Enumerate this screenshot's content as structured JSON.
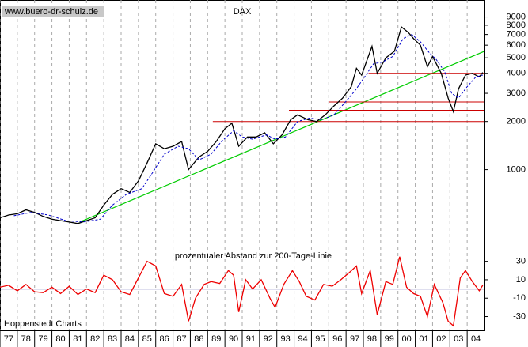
{
  "chart_data": [
    {
      "type": "line",
      "title": "DAX",
      "source": "www.buero-dr-schulz.de",
      "log_scale": true,
      "grid": true,
      "xlim": [
        1977,
        2005
      ],
      "ylim": [
        330,
        11500
      ],
      "yticks": [
        1000,
        2000,
        3000,
        4000,
        5000,
        6000,
        7000,
        8000,
        9000
      ],
      "series": [
        {
          "name": "DAX",
          "color": "#000000",
          "x": [
            1977.0,
            1977.5,
            1978.0,
            1978.5,
            1979.0,
            1979.5,
            1980.0,
            1980.5,
            1981.0,
            1981.5,
            1982.0,
            1982.5,
            1983.0,
            1983.5,
            1984.0,
            1984.5,
            1985.0,
            1985.5,
            1986.0,
            1986.5,
            1987.0,
            1987.5,
            1987.9,
            1988.5,
            1989.0,
            1989.5,
            1990.0,
            1990.4,
            1990.8,
            1991.3,
            1991.8,
            1992.3,
            1992.8,
            1993.3,
            1993.8,
            1994.2,
            1994.8,
            1995.3,
            1995.8,
            1996.3,
            1996.8,
            1997.3,
            1997.6,
            1997.9,
            1998.5,
            1998.8,
            1999.3,
            1999.8,
            2000.2,
            2000.6,
            2000.9,
            2001.3,
            2001.7,
            2002.0,
            2002.5,
            2002.9,
            2003.2,
            2003.5,
            2003.9,
            2004.3,
            2004.7,
            2004.9
          ],
          "values": [
            500,
            520,
            530,
            560,
            540,
            510,
            490,
            480,
            470,
            460,
            480,
            500,
            600,
            700,
            760,
            720,
            850,
            1100,
            1450,
            1350,
            1400,
            1500,
            1000,
            1200,
            1300,
            1500,
            1800,
            1950,
            1400,
            1600,
            1600,
            1700,
            1450,
            1650,
            2050,
            2200,
            2050,
            2000,
            2200,
            2500,
            2800,
            3300,
            4300,
            3900,
            5900,
            4000,
            5000,
            5500,
            7800,
            7200,
            6600,
            6000,
            4400,
            5100,
            4000,
            2800,
            2300,
            3200,
            3900,
            4000,
            3800,
            4050
          ]
        },
        {
          "name": "200-Tage-Linie",
          "color": "#0000cc",
          "dashed": true,
          "x": [
            1977.8,
            1978.8,
            1979.8,
            1980.8,
            1981.8,
            1982.8,
            1983.5,
            1984.3,
            1985.2,
            1985.8,
            1986.5,
            1987.3,
            1987.9,
            1988.5,
            1989.2,
            1989.8,
            1990.5,
            1991.0,
            1991.6,
            1992.4,
            1992.9,
            1993.5,
            1994.2,
            1994.9,
            1995.6,
            1996.3,
            1996.9,
            1997.5,
            1998.0,
            1998.6,
            1999.1,
            1999.7,
            2000.3,
            2000.8,
            2001.3,
            2001.8,
            2002.2,
            2002.7,
            2003.1,
            2003.5,
            2004.0,
            2004.5,
            2004.9
          ],
          "values": [
            515,
            540,
            520,
            480,
            470,
            490,
            600,
            700,
            760,
            950,
            1250,
            1400,
            1350,
            1150,
            1250,
            1500,
            1750,
            1600,
            1550,
            1650,
            1550,
            1600,
            2000,
            2100,
            2050,
            2200,
            2600,
            3100,
            3700,
            4600,
            4700,
            5100,
            6600,
            7000,
            6300,
            5400,
            4900,
            4100,
            3000,
            2800,
            3300,
            3800,
            3900
          ]
        }
      ],
      "trendline": {
        "color": "#00cc00",
        "x": [
          1981.6,
          2005
        ],
        "values": [
          470,
          5500
        ]
      },
      "levels": {
        "color": "#cc0000",
        "from": [
          1998.3,
          1996.0,
          1993.7,
          1989.3
        ],
        "values": [
          4000,
          2650,
          2350,
          2000
        ]
      }
    },
    {
      "type": "line",
      "title": "prozentualer Abstand zur 200-Tage-Linie",
      "source": "Hoppenstedt Charts",
      "grid": true,
      "xlim": [
        1977,
        2005
      ],
      "ylim": [
        -45,
        46
      ],
      "yticks": [
        -30,
        -10,
        10,
        30
      ],
      "zero_line_color": "#000080",
      "xticks": [
        {
          "value": 1977,
          "label": "77"
        },
        {
          "value": 1978,
          "label": "78"
        },
        {
          "value": 1979,
          "label": "79"
        },
        {
          "value": 1980,
          "label": "80"
        },
        {
          "value": 1981,
          "label": "81"
        },
        {
          "value": 1982,
          "label": "82"
        },
        {
          "value": 1983,
          "label": "83"
        },
        {
          "value": 1984,
          "label": "84"
        },
        {
          "value": 1985,
          "label": "85"
        },
        {
          "value": 1986,
          "label": "86"
        },
        {
          "value": 1987,
          "label": "87"
        },
        {
          "value": 1988,
          "label": "88"
        },
        {
          "value": 1989,
          "label": "89"
        },
        {
          "value": 1990,
          "label": "90"
        },
        {
          "value": 1991,
          "label": "91"
        },
        {
          "value": 1992,
          "label": "92"
        },
        {
          "value": 1993,
          "label": "93"
        },
        {
          "value": 1994,
          "label": "94"
        },
        {
          "value": 1995,
          "label": "95"
        },
        {
          "value": 1996,
          "label": "96"
        },
        {
          "value": 1997,
          "label": "97"
        },
        {
          "value": 1998,
          "label": "98"
        },
        {
          "value": 1999,
          "label": "99"
        },
        {
          "value": 2000,
          "label": "00"
        },
        {
          "value": 2001,
          "label": "01"
        },
        {
          "value": 2002,
          "label": "02"
        },
        {
          "value": 2003,
          "label": "03"
        },
        {
          "value": 2004,
          "label": "04"
        }
      ],
      "series": [
        {
          "name": "Abstand",
          "color": "#ee0000",
          "x": [
            1977,
            1977.5,
            1978,
            1978.5,
            1979,
            1979.5,
            1980,
            1980.5,
            1981,
            1981.5,
            1982,
            1982.5,
            1983,
            1983.5,
            1984,
            1984.5,
            1985,
            1985.5,
            1986,
            1986.5,
            1987,
            1987.5,
            1987.9,
            1988.3,
            1988.8,
            1989.2,
            1989.7,
            1990.2,
            1990.5,
            1990.8,
            1991.2,
            1991.6,
            1992.1,
            1992.6,
            1992.9,
            1993.4,
            1993.9,
            1994.3,
            1994.7,
            1995.2,
            1995.7,
            1996.2,
            1996.7,
            1997.2,
            1997.6,
            1997.9,
            1998.4,
            1998.8,
            1999.3,
            1999.7,
            2000.1,
            2000.5,
            2000.9,
            2001.3,
            2001.7,
            2002.1,
            2002.6,
            2002.9,
            2003.2,
            2003.6,
            2003.9,
            2004.3,
            2004.7,
            2004.9
          ],
          "values": [
            2,
            4,
            -2,
            5,
            -3,
            -4,
            2,
            -5,
            3,
            -6,
            0,
            -4,
            15,
            10,
            -3,
            -6,
            12,
            30,
            25,
            -5,
            -8,
            5,
            -35,
            -10,
            5,
            8,
            6,
            20,
            15,
            -25,
            10,
            0,
            10,
            -10,
            -20,
            5,
            20,
            8,
            -8,
            -12,
            5,
            3,
            10,
            18,
            25,
            -5,
            20,
            -28,
            8,
            5,
            35,
            2,
            -5,
            -8,
            -30,
            5,
            -15,
            -35,
            -40,
            12,
            20,
            8,
            -2,
            4
          ]
        }
      ]
    }
  ]
}
